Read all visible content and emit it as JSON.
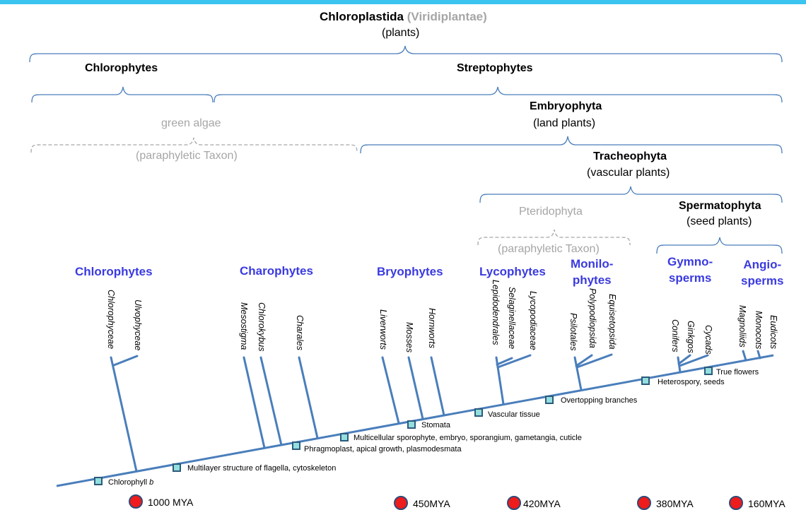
{
  "header": {
    "title_main": "Chloroplastida",
    "title_alt": "(Viridiplantae)",
    "title_sub": "(plants)"
  },
  "clades": {
    "chlorophytes": "Chlorophytes",
    "streptophytes": "Streptophytes",
    "green_algae": "green algae",
    "green_algae_note": "(paraphyletic Taxon)",
    "embryophyta": "Embryophyta",
    "embryophyta_sub": "(land plants)",
    "tracheophyta": "Tracheophyta",
    "tracheophyta_sub": "(vascular plants)",
    "pteridophyta": "Pteridophyta",
    "pteridophyta_note": "(paraphyletic Taxon)",
    "spermatophyta": "Spermatophyta",
    "spermatophyta_sub": "(seed plants)"
  },
  "groups": {
    "chlorophytes": "Chlorophytes",
    "charophytes": "Charophytes",
    "bryophytes": "Bryophytes",
    "lycophytes": "Lycophytes",
    "monilophytes": "Monilo-\nphytes",
    "gymnosperms": "Gymno-\nsperms",
    "angiosperms": "Angio-\nsperms"
  },
  "taxa": {
    "chlorophyceae": "Chlorophyceae",
    "ulvophyceae": "Ulvophyceae",
    "mesostigma": "Mesostigma",
    "chlorokybus": "Chlorokybus",
    "charales": "Charales",
    "liverworts": "Liverworts",
    "mosses": "Mosses",
    "hornworts": "Hornworts",
    "lepidodendrales": "Lepidodendrales",
    "selaginellaceae": "Selaginellaceae",
    "lycopodiaceae": "Lycopodiaceae",
    "psilotales": "Psilotales",
    "polypodiopsida": "Polypodiopsida",
    "equisetopsida": "Equisetopsida",
    "conifers": "Conifers",
    "ginkgos": "Ginkgos",
    "cycads": "Cycads",
    "magnoliids": "Magnoliids",
    "monocots": "Monocots",
    "eudicots": "Eudicots"
  },
  "features": {
    "chlorophyll_prefix": "Chlorophyll ",
    "chlorophyll_suffix": "b",
    "flagella": "Multilayer structure of flagella, cytoskeleton",
    "phragmoplast": "Phragmoplast, apical growth, plasmodesmata",
    "multicellular": "Multicellular sporophyte, embryo, sporangium, gametangia, cuticle",
    "stomata": "Stomata",
    "vascular": "Vascular tissue",
    "overtopping": "Overtopping branches",
    "heterospory": "Heterospory, seeds",
    "true_flowers": "True flowers"
  },
  "timeline": [
    "1000 MYA",
    "450MYA",
    "420MYA",
    "380MYA",
    "160MYA"
  ],
  "colors": {
    "accent_bar": "#3bc4ef",
    "tree_line": "#4a7ebb",
    "group_label": "#3a3ae0",
    "paraphyletic_gray": "#a6a6a6",
    "marker_fill": "#93dede",
    "time_dot": "#ee1c1c"
  }
}
